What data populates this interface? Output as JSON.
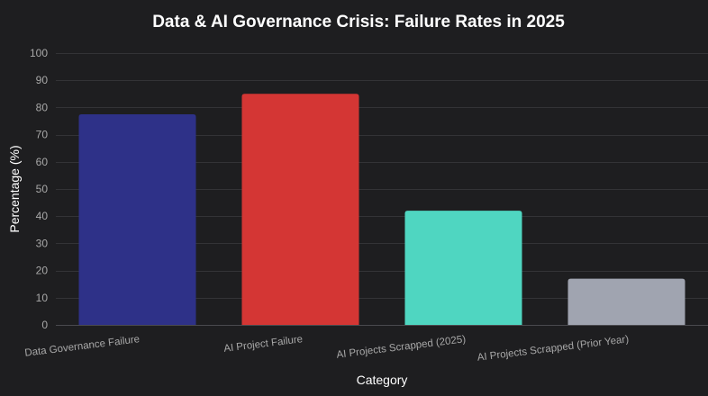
{
  "chart_data": {
    "type": "bar",
    "title": "Data & AI Governance Crisis: Failure Rates in 2025",
    "xlabel": "Category",
    "ylabel": "Percentage (%)",
    "categories": [
      "Data Governance Failure",
      "AI Project Failure",
      "AI Projects Scrapped (2025)",
      "AI Projects Scrapped (Prior Year)"
    ],
    "values": [
      77.5,
      85,
      42,
      17
    ],
    "colors": [
      "#2e3188",
      "#d43634",
      "#4fd6c1",
      "#a0a4b0"
    ],
    "ylim": [
      0,
      100
    ],
    "yticks": [
      0,
      10,
      20,
      30,
      40,
      50,
      60,
      70,
      80,
      90,
      100
    ],
    "grid": true,
    "legend": "none"
  },
  "theme": {
    "background": "#1e1e20",
    "grid": "#333336",
    "text": "#ffffff",
    "tick_text": "#a8a8a8"
  }
}
